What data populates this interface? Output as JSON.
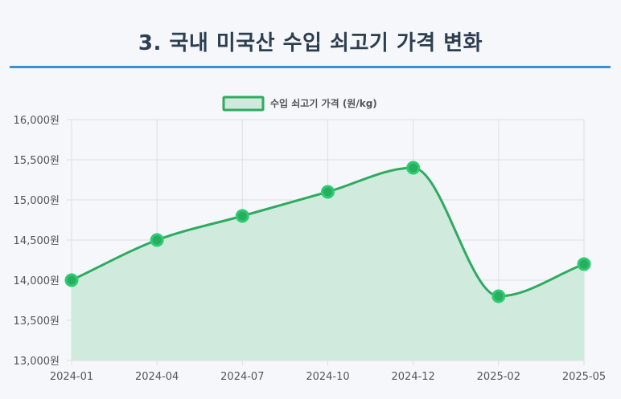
{
  "page": {
    "title": "3. 국내 미국산 수입 쇠고기 가격 변화"
  },
  "chart_data": {
    "type": "area",
    "title": "3. 국내 미국산 수입 쇠고기 가격 변화",
    "categories": [
      "2024-01",
      "2024-04",
      "2024-07",
      "2024-10",
      "2024-12",
      "2025-02",
      "2025-05"
    ],
    "series": [
      {
        "name": "수입 쇠고기 가격 (원/kg)",
        "values": [
          14000,
          14500,
          14800,
          15100,
          15400,
          13800,
          14200
        ]
      }
    ],
    "ylim": [
      13000,
      16000
    ],
    "yticks": [
      13000,
      13500,
      14000,
      14500,
      15000,
      15500,
      16000
    ],
    "ytick_suffix": "원",
    "xlabel": "",
    "ylabel": "",
    "grid": true,
    "legend": "top-center",
    "colors": {
      "line": "#2eab5f",
      "fill": "#cfe9dc",
      "point": "#27ae60",
      "point_border": "#2ecc71",
      "grid": "#dcdfe4"
    }
  }
}
